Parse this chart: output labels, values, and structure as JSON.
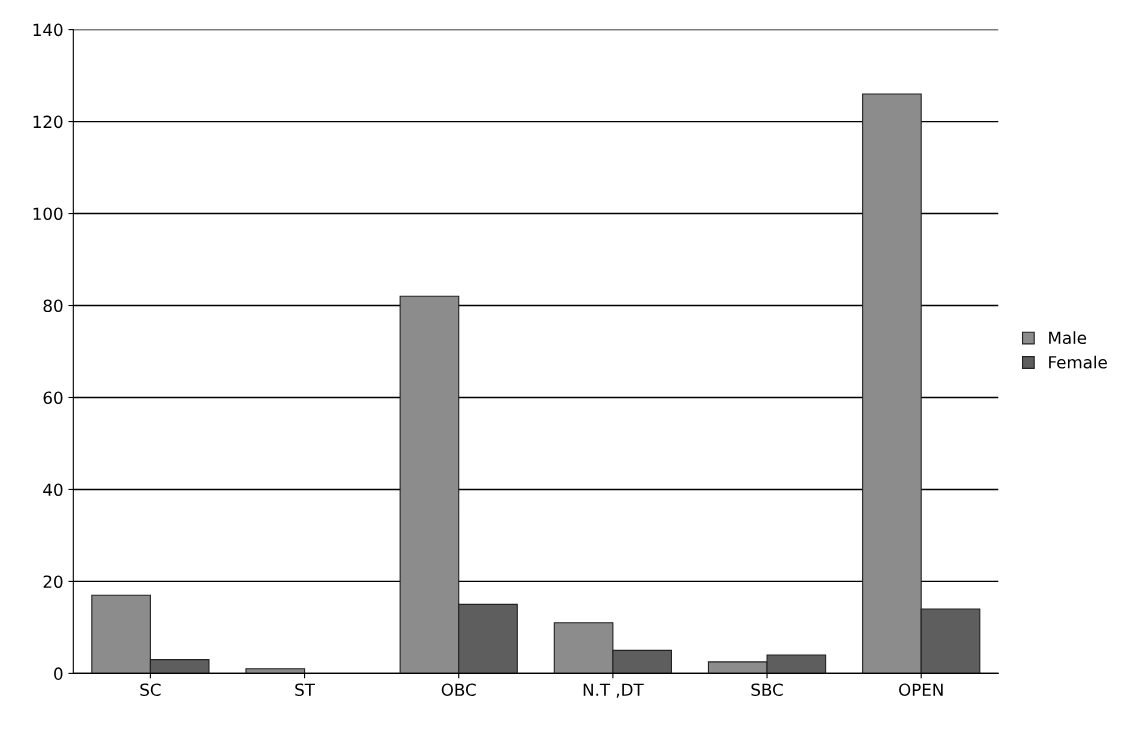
{
  "chart_data": {
    "type": "bar",
    "categories": [
      "SC",
      "ST",
      "OBC",
      "N.T ,DT",
      "SBC",
      "OPEN"
    ],
    "series": [
      {
        "name": "Male",
        "color": "#8c8c8c",
        "values": [
          17,
          1,
          82,
          11,
          2.5,
          126
        ]
      },
      {
        "name": "Female",
        "color": "#5e5e5e",
        "values": [
          3,
          0,
          15,
          5,
          4,
          14
        ]
      }
    ],
    "ylim": [
      0,
      140
    ],
    "yticks": [
      0,
      20,
      40,
      60,
      80,
      100,
      120,
      140
    ],
    "grid": "y",
    "legend": "right"
  }
}
